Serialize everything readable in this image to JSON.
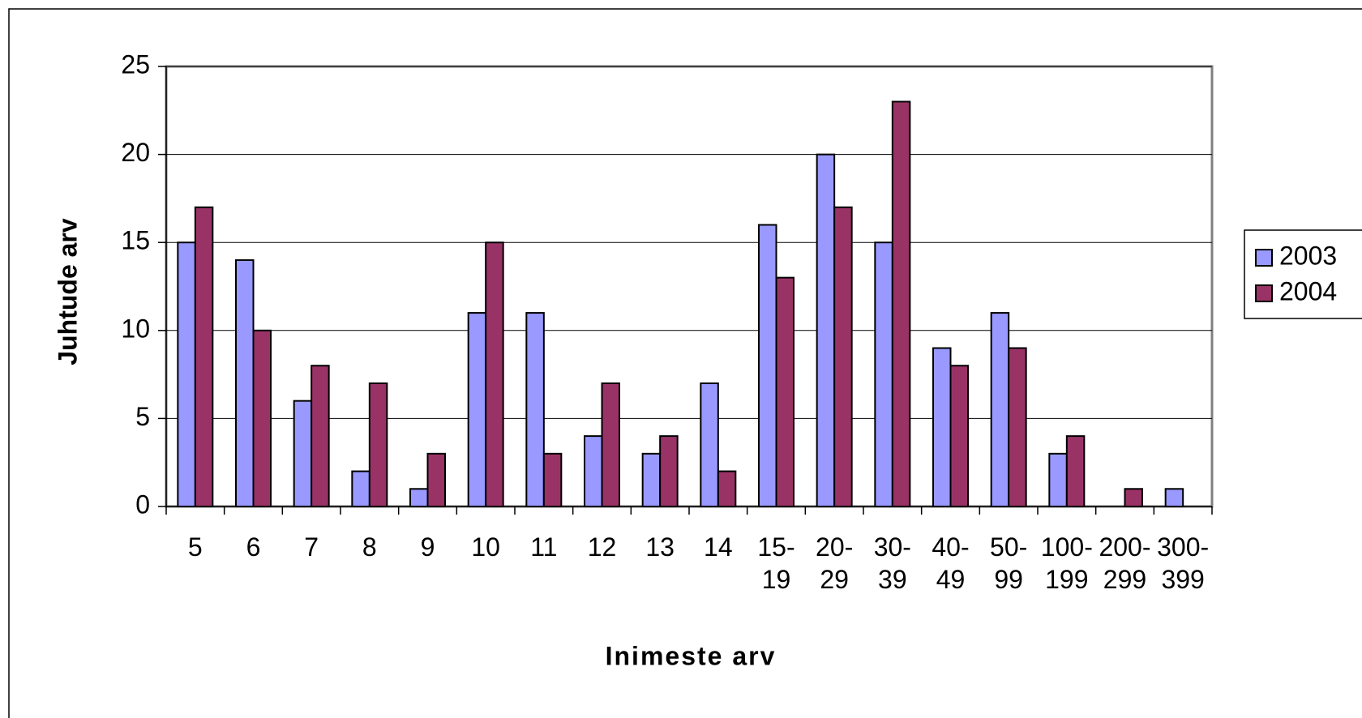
{
  "chart_data": {
    "type": "bar",
    "x_label": "Inimeste arv",
    "y_label": "Juhtude arv",
    "categories": [
      "5",
      "6",
      "7",
      "8",
      "9",
      "10",
      "11",
      "12",
      "13",
      "14",
      "15-19",
      "20-29",
      "30-39",
      "40-49",
      "50-99",
      "100-199",
      "200-299",
      "300-399"
    ],
    "series": [
      {
        "name": "2003",
        "color": "#9999ff",
        "values": [
          15,
          14,
          6,
          2,
          1,
          11,
          11,
          4,
          3,
          7,
          16,
          20,
          15,
          9,
          11,
          3,
          0,
          1
        ]
      },
      {
        "name": "2004",
        "color": "#993366",
        "values": [
          17,
          10,
          8,
          7,
          3,
          15,
          3,
          7,
          4,
          2,
          13,
          17,
          23,
          8,
          9,
          4,
          1,
          0
        ]
      }
    ],
    "ylim": [
      0,
      25
    ],
    "yticks": [
      0,
      5,
      10,
      15,
      20,
      25
    ],
    "grid": true,
    "legend": "right"
  }
}
